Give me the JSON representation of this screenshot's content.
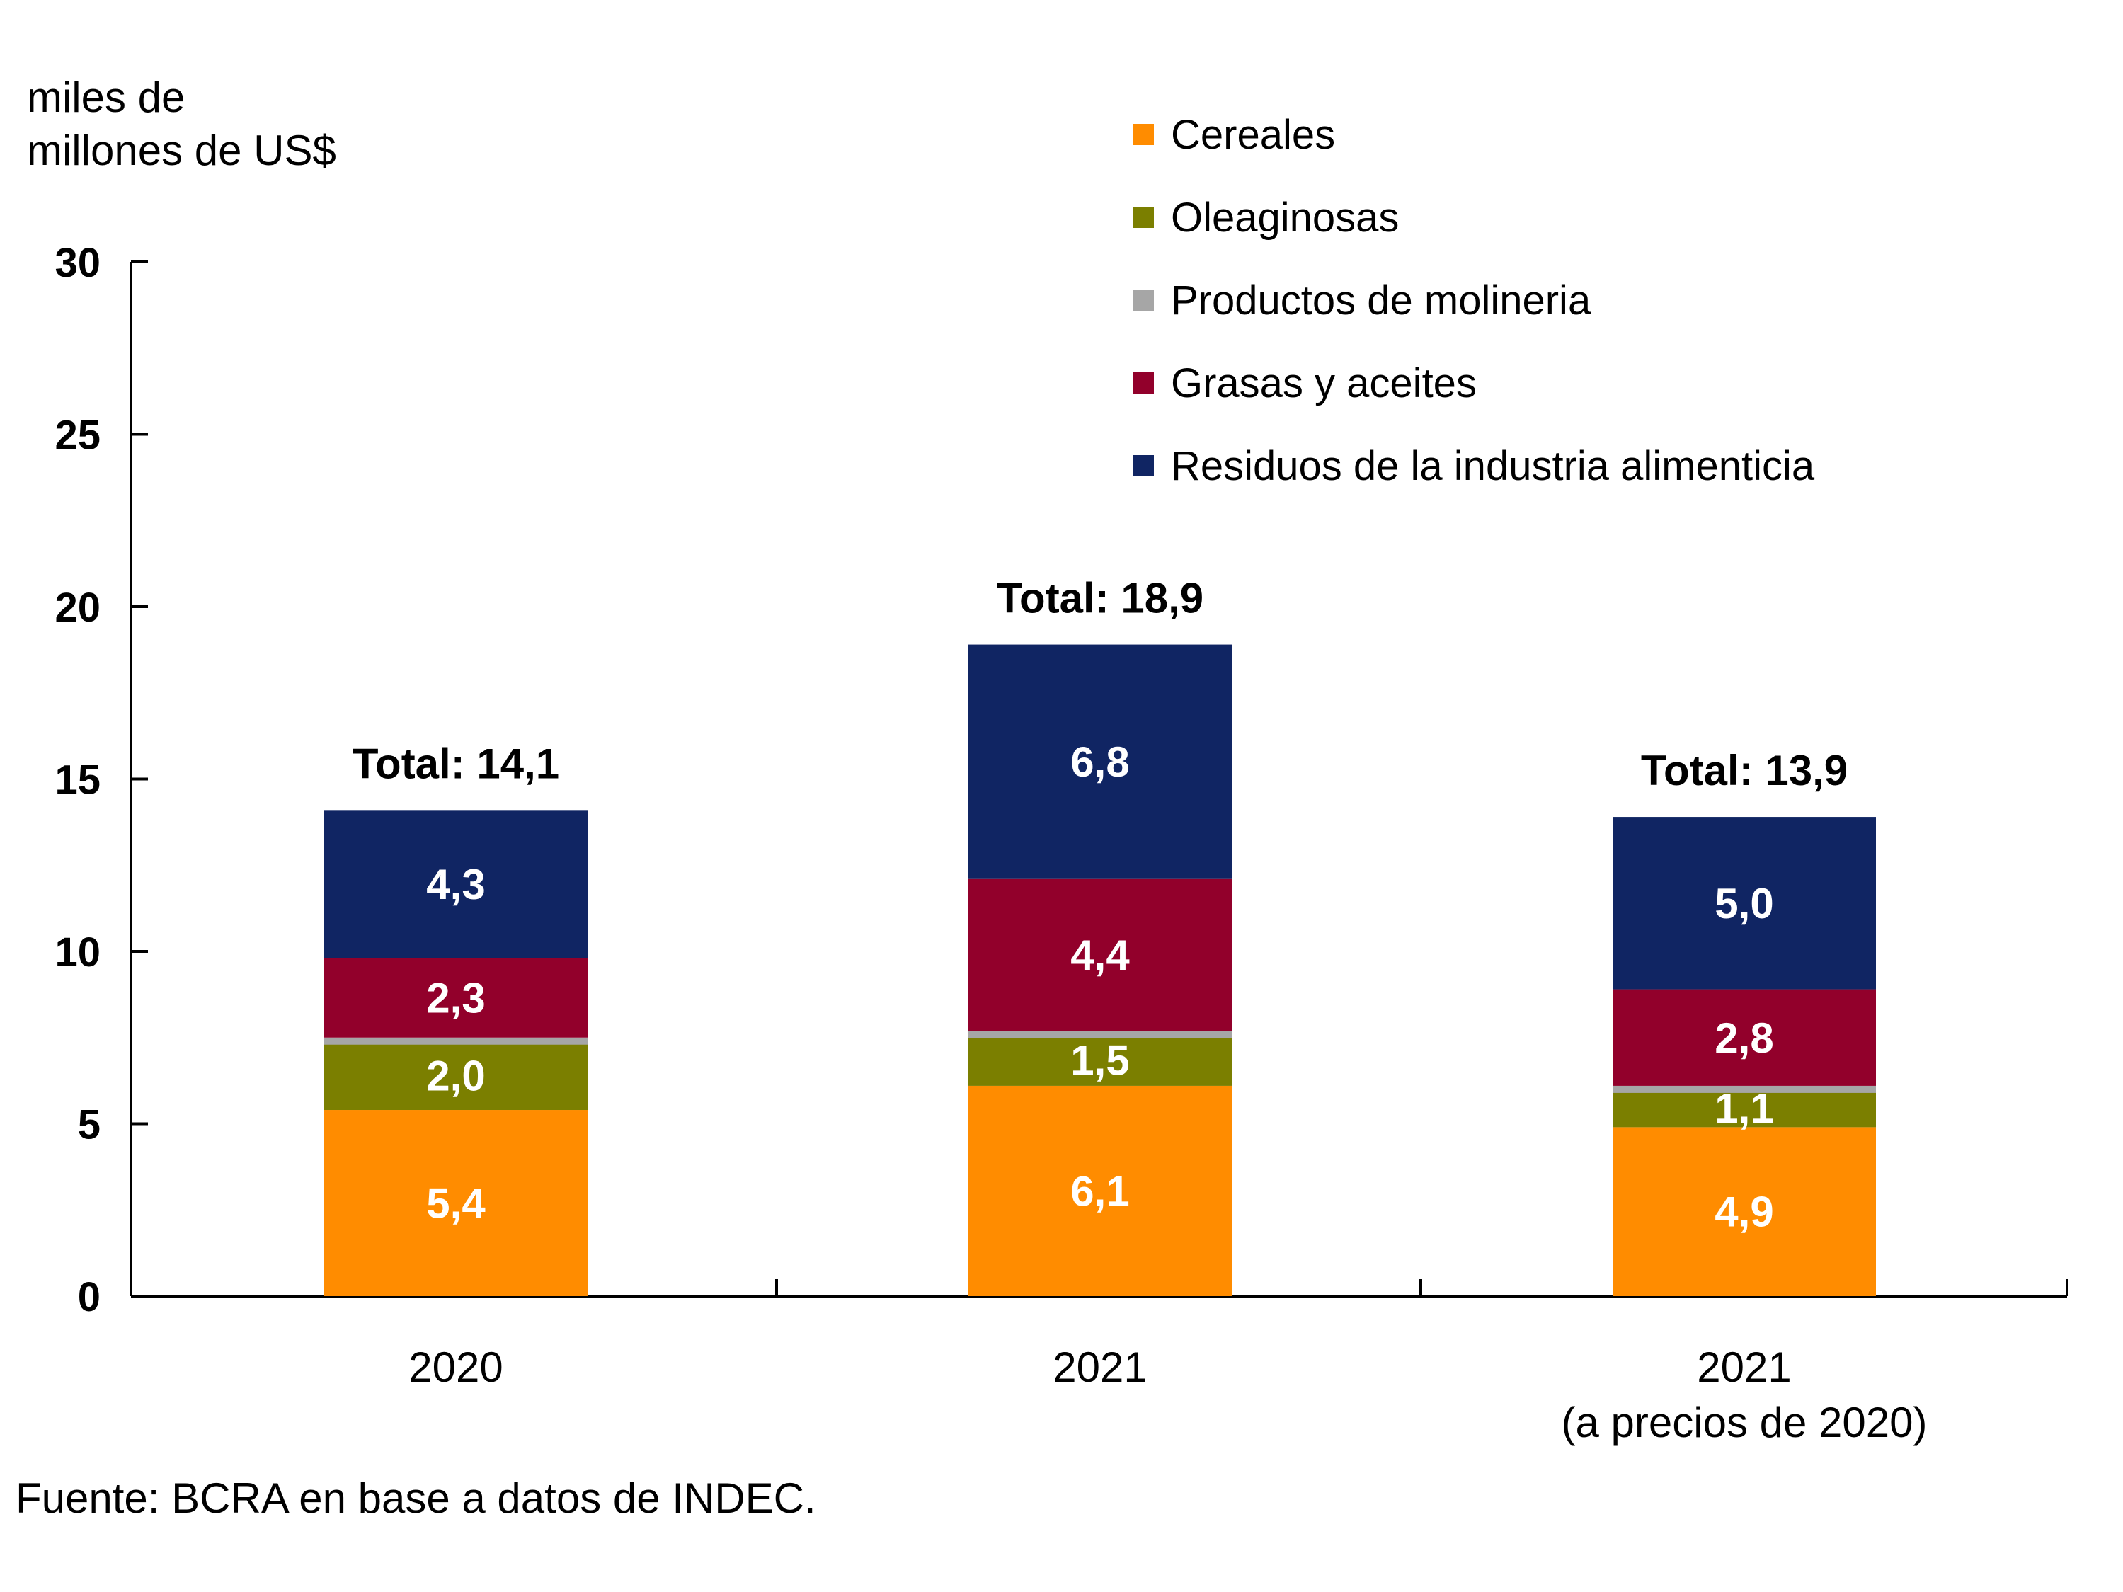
{
  "header": {
    "y_axis_title": "miles de\nmillones de US$"
  },
  "source": {
    "text": "Fuente: BCRA en base a datos de INDEC."
  },
  "colors": {
    "background": "#ffffff",
    "axis": "#000000",
    "value_label_text": "#ffffff",
    "text": "#000000"
  },
  "chart_data": {
    "type": "bar",
    "stacked": true,
    "title": "",
    "unit_label": "miles de millones de US$",
    "categories": [
      "2020",
      "2021",
      "2021\n(a precios de 2020)"
    ],
    "series": [
      {
        "name": "Cereales",
        "color": "#FF8C00",
        "values": [
          5.4,
          6.1,
          4.9
        ]
      },
      {
        "name": "Oleaginosas",
        "color": "#7B7F00",
        "values": [
          2.0,
          1.5,
          1.1
        ]
      },
      {
        "name": "Productos de molineria",
        "color": "#A6A6A6",
        "values": [
          0.1,
          0.1,
          0.1
        ]
      },
      {
        "name": "Grasas y aceites",
        "color": "#92002B",
        "values": [
          2.3,
          4.4,
          2.8
        ]
      },
      {
        "name": "Residuos de la industria alimenticia",
        "color": "#102563",
        "values": [
          4.3,
          6.8,
          5.0
        ]
      }
    ],
    "totals": [
      14.1,
      18.9,
      13.9
    ],
    "total_label_prefix": "Total: ",
    "ylim": [
      0,
      30
    ],
    "yticks": [
      0,
      5,
      10,
      15,
      20,
      25,
      30
    ],
    "decimal_separator": ",",
    "grid": false,
    "legend_position": "top-right",
    "value_label_min": 0.5
  }
}
